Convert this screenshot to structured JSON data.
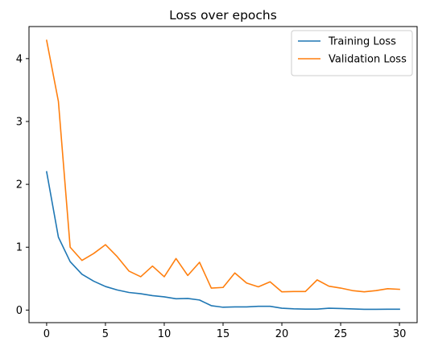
{
  "chart_data": {
    "type": "line",
    "title": "Loss over epochs",
    "xlabel": "",
    "ylabel": "",
    "xlim": [
      -1.5,
      31.5
    ],
    "ylim": [
      -0.2,
      4.51
    ],
    "xticks": [
      0,
      5,
      10,
      15,
      20,
      25,
      30
    ],
    "yticks": [
      0,
      1,
      2,
      3,
      4
    ],
    "grid": false,
    "legend_position": "top-right",
    "x": [
      0,
      1,
      2,
      3,
      4,
      5,
      6,
      7,
      8,
      9,
      10,
      11,
      12,
      13,
      14,
      15,
      16,
      17,
      18,
      19,
      20,
      21,
      22,
      23,
      24,
      25,
      26,
      27,
      28,
      29,
      30
    ],
    "series": [
      {
        "name": "Training Loss",
        "color": "#1f77b4",
        "values": [
          2.2,
          1.16,
          0.77,
          0.57,
          0.46,
          0.375,
          0.32,
          0.28,
          0.26,
          0.23,
          0.21,
          0.18,
          0.185,
          0.16,
          0.07,
          0.045,
          0.05,
          0.05,
          0.06,
          0.06,
          0.03,
          0.02,
          0.015,
          0.015,
          0.03,
          0.025,
          0.018,
          0.012,
          0.012,
          0.013,
          0.013
        ]
      },
      {
        "name": "Validation Loss",
        "color": "#ff7f0e",
        "values": [
          4.29,
          3.32,
          1.0,
          0.79,
          0.9,
          1.04,
          0.85,
          0.62,
          0.53,
          0.7,
          0.53,
          0.82,
          0.55,
          0.76,
          0.35,
          0.36,
          0.59,
          0.43,
          0.37,
          0.45,
          0.29,
          0.295,
          0.295,
          0.48,
          0.38,
          0.35,
          0.31,
          0.29,
          0.31,
          0.34,
          0.33
        ]
      }
    ]
  }
}
